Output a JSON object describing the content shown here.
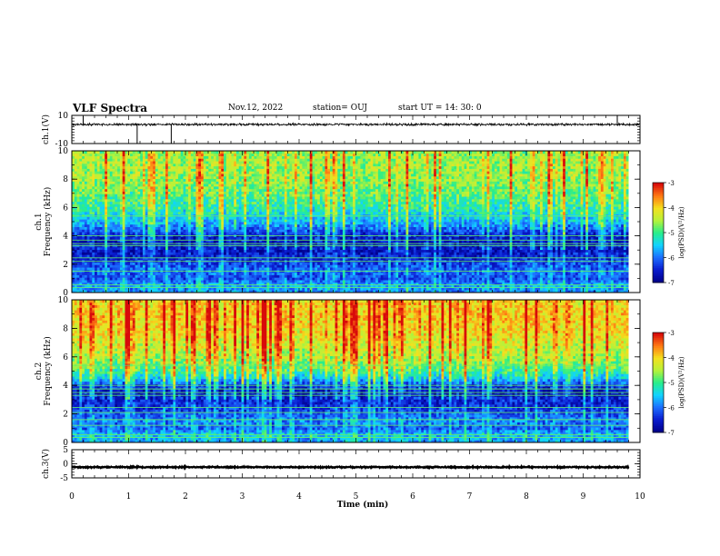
{
  "header": {
    "title": "VLF Spectra",
    "date": "Nov.12, 2022",
    "station": "station= OUJ",
    "start": "start  UT =   14: 30: 0"
  },
  "colors": {
    "waveform": "#000000",
    "colormap": [
      "#00008a",
      "#0a1ccf",
      "#1d6fff",
      "#11d4ff",
      "#28ee8a",
      "#b6f23a",
      "#f4e01e",
      "#ff7a14",
      "#d80a0a",
      "#f3f3f3"
    ]
  },
  "chart_data": [
    {
      "type": "line",
      "id": "ch1",
      "ylabel": "ch.1(V)",
      "ylim": [
        -10,
        10
      ],
      "yticks": [
        "10",
        "-10"
      ],
      "baseline": 3.5,
      "noise_band": [
        2.6,
        4.5
      ],
      "spikes": [
        {
          "t": 0.2,
          "v": 9.5
        },
        {
          "t": 1.15,
          "v": -10.0
        },
        {
          "t": 1.75,
          "v": -10.0
        },
        {
          "t": 9.6,
          "v": 10.0
        }
      ],
      "xlim": [
        0,
        10
      ]
    },
    {
      "type": "heatmap",
      "id": "ch1_spec",
      "ylabel": "ch.1",
      "ylabel2": "Frequency (kHz)",
      "ylim": [
        0,
        10
      ],
      "yticks": [
        "0",
        "2",
        "4",
        "6",
        "8",
        "10"
      ],
      "xlim": [
        0,
        9.8
      ],
      "profile_freq_khz": [
        0,
        0.5,
        1,
        1.5,
        2,
        2.5,
        3,
        3.5,
        4,
        4.5,
        5,
        6,
        7,
        8,
        9,
        10
      ],
      "profile_level": [
        -6.0,
        -5.8,
        -6.3,
        -6.1,
        -6.3,
        -6.6,
        -6.7,
        -6.8,
        -6.7,
        -6.2,
        -5.8,
        -5.3,
        -5.0,
        -4.8,
        -4.7,
        -4.8
      ],
      "hum_lines_khz": [
        0.35,
        0.55,
        1.5,
        2.2,
        2.45,
        3.3,
        3.45,
        3.7,
        4.0,
        5.4
      ],
      "colorbar": {
        "label": "log(PSD)(V²/Hz)",
        "range": [
          -7,
          -3
        ],
        "ticks": [
          "-3",
          "-4",
          "-5",
          "-6",
          "-7"
        ]
      }
    },
    {
      "type": "heatmap",
      "id": "ch2_spec",
      "ylabel": "ch.2",
      "ylabel2": "Frequency (kHz)",
      "ylim": [
        0,
        10
      ],
      "yticks": [
        "0",
        "2",
        "4",
        "6",
        "8",
        "10"
      ],
      "xlim": [
        0,
        9.8
      ],
      "profile_freq_khz": [
        0,
        0.5,
        1,
        1.5,
        2,
        2.5,
        3,
        3.5,
        4,
        4.5,
        5,
        6,
        7,
        8,
        9,
        10
      ],
      "profile_level": [
        -5.9,
        -5.7,
        -6.2,
        -6.0,
        -6.2,
        -6.5,
        -6.6,
        -6.8,
        -6.5,
        -5.7,
        -5.2,
        -4.7,
        -4.4,
        -4.2,
        -4.1,
        -4.2
      ],
      "hum_lines_khz": [
        0.35,
        0.55,
        1.2,
        1.6,
        2.1,
        2.45,
        3.3,
        3.5,
        3.75,
        4.0,
        5.4
      ],
      "colorbar": {
        "label": "log(PSD)(V²/Hz)",
        "range": [
          -7,
          -3
        ],
        "ticks": [
          "-3",
          "-4",
          "-5",
          "-6",
          "-7"
        ]
      }
    },
    {
      "type": "line",
      "id": "ch3",
      "ylabel": "ch.3(V)",
      "ylim": [
        -5,
        5
      ],
      "yticks": [
        "5",
        "0",
        "-5"
      ],
      "baseline": -1.2,
      "noise_band": [
        -1.45,
        -0.95
      ],
      "xlim": [
        0,
        9.8
      ],
      "xlabel": "Time (min)",
      "xticks": [
        "0",
        "1",
        "2",
        "3",
        "4",
        "5",
        "6",
        "7",
        "8",
        "9",
        "10"
      ]
    }
  ]
}
